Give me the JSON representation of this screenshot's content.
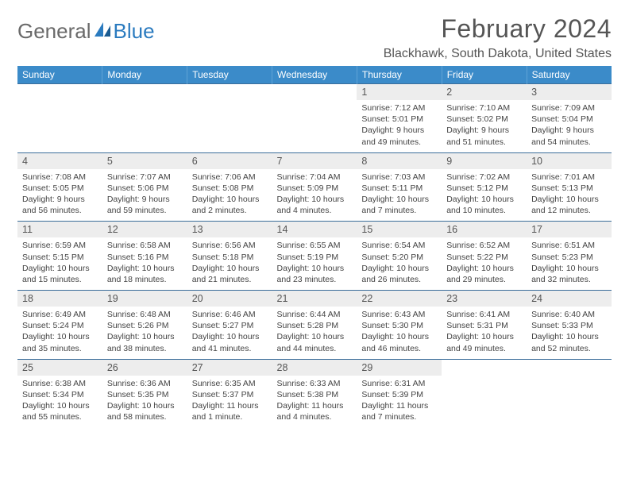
{
  "brand": {
    "part1": "General",
    "part2": "Blue"
  },
  "title": "February 2024",
  "location": "Blackhawk, South Dakota, United States",
  "colors": {
    "header_bg": "#3b8bc9",
    "header_text": "#ffffff",
    "daynum_bg": "#ededed",
    "rule": "#3b6d9a",
    "logo_gray": "#6a6a6a",
    "logo_blue": "#2b7bbf"
  },
  "day_names": [
    "Sunday",
    "Monday",
    "Tuesday",
    "Wednesday",
    "Thursday",
    "Friday",
    "Saturday"
  ],
  "weeks": [
    [
      null,
      null,
      null,
      null,
      {
        "n": "1",
        "sr": "Sunrise: 7:12 AM",
        "ss": "Sunset: 5:01 PM",
        "d1": "Daylight: 9 hours",
        "d2": "and 49 minutes."
      },
      {
        "n": "2",
        "sr": "Sunrise: 7:10 AM",
        "ss": "Sunset: 5:02 PM",
        "d1": "Daylight: 9 hours",
        "d2": "and 51 minutes."
      },
      {
        "n": "3",
        "sr": "Sunrise: 7:09 AM",
        "ss": "Sunset: 5:04 PM",
        "d1": "Daylight: 9 hours",
        "d2": "and 54 minutes."
      }
    ],
    [
      {
        "n": "4",
        "sr": "Sunrise: 7:08 AM",
        "ss": "Sunset: 5:05 PM",
        "d1": "Daylight: 9 hours",
        "d2": "and 56 minutes."
      },
      {
        "n": "5",
        "sr": "Sunrise: 7:07 AM",
        "ss": "Sunset: 5:06 PM",
        "d1": "Daylight: 9 hours",
        "d2": "and 59 minutes."
      },
      {
        "n": "6",
        "sr": "Sunrise: 7:06 AM",
        "ss": "Sunset: 5:08 PM",
        "d1": "Daylight: 10 hours",
        "d2": "and 2 minutes."
      },
      {
        "n": "7",
        "sr": "Sunrise: 7:04 AM",
        "ss": "Sunset: 5:09 PM",
        "d1": "Daylight: 10 hours",
        "d2": "and 4 minutes."
      },
      {
        "n": "8",
        "sr": "Sunrise: 7:03 AM",
        "ss": "Sunset: 5:11 PM",
        "d1": "Daylight: 10 hours",
        "d2": "and 7 minutes."
      },
      {
        "n": "9",
        "sr": "Sunrise: 7:02 AM",
        "ss": "Sunset: 5:12 PM",
        "d1": "Daylight: 10 hours",
        "d2": "and 10 minutes."
      },
      {
        "n": "10",
        "sr": "Sunrise: 7:01 AM",
        "ss": "Sunset: 5:13 PM",
        "d1": "Daylight: 10 hours",
        "d2": "and 12 minutes."
      }
    ],
    [
      {
        "n": "11",
        "sr": "Sunrise: 6:59 AM",
        "ss": "Sunset: 5:15 PM",
        "d1": "Daylight: 10 hours",
        "d2": "and 15 minutes."
      },
      {
        "n": "12",
        "sr": "Sunrise: 6:58 AM",
        "ss": "Sunset: 5:16 PM",
        "d1": "Daylight: 10 hours",
        "d2": "and 18 minutes."
      },
      {
        "n": "13",
        "sr": "Sunrise: 6:56 AM",
        "ss": "Sunset: 5:18 PM",
        "d1": "Daylight: 10 hours",
        "d2": "and 21 minutes."
      },
      {
        "n": "14",
        "sr": "Sunrise: 6:55 AM",
        "ss": "Sunset: 5:19 PM",
        "d1": "Daylight: 10 hours",
        "d2": "and 23 minutes."
      },
      {
        "n": "15",
        "sr": "Sunrise: 6:54 AM",
        "ss": "Sunset: 5:20 PM",
        "d1": "Daylight: 10 hours",
        "d2": "and 26 minutes."
      },
      {
        "n": "16",
        "sr": "Sunrise: 6:52 AM",
        "ss": "Sunset: 5:22 PM",
        "d1": "Daylight: 10 hours",
        "d2": "and 29 minutes."
      },
      {
        "n": "17",
        "sr": "Sunrise: 6:51 AM",
        "ss": "Sunset: 5:23 PM",
        "d1": "Daylight: 10 hours",
        "d2": "and 32 minutes."
      }
    ],
    [
      {
        "n": "18",
        "sr": "Sunrise: 6:49 AM",
        "ss": "Sunset: 5:24 PM",
        "d1": "Daylight: 10 hours",
        "d2": "and 35 minutes."
      },
      {
        "n": "19",
        "sr": "Sunrise: 6:48 AM",
        "ss": "Sunset: 5:26 PM",
        "d1": "Daylight: 10 hours",
        "d2": "and 38 minutes."
      },
      {
        "n": "20",
        "sr": "Sunrise: 6:46 AM",
        "ss": "Sunset: 5:27 PM",
        "d1": "Daylight: 10 hours",
        "d2": "and 41 minutes."
      },
      {
        "n": "21",
        "sr": "Sunrise: 6:44 AM",
        "ss": "Sunset: 5:28 PM",
        "d1": "Daylight: 10 hours",
        "d2": "and 44 minutes."
      },
      {
        "n": "22",
        "sr": "Sunrise: 6:43 AM",
        "ss": "Sunset: 5:30 PM",
        "d1": "Daylight: 10 hours",
        "d2": "and 46 minutes."
      },
      {
        "n": "23",
        "sr": "Sunrise: 6:41 AM",
        "ss": "Sunset: 5:31 PM",
        "d1": "Daylight: 10 hours",
        "d2": "and 49 minutes."
      },
      {
        "n": "24",
        "sr": "Sunrise: 6:40 AM",
        "ss": "Sunset: 5:33 PM",
        "d1": "Daylight: 10 hours",
        "d2": "and 52 minutes."
      }
    ],
    [
      {
        "n": "25",
        "sr": "Sunrise: 6:38 AM",
        "ss": "Sunset: 5:34 PM",
        "d1": "Daylight: 10 hours",
        "d2": "and 55 minutes."
      },
      {
        "n": "26",
        "sr": "Sunrise: 6:36 AM",
        "ss": "Sunset: 5:35 PM",
        "d1": "Daylight: 10 hours",
        "d2": "and 58 minutes."
      },
      {
        "n": "27",
        "sr": "Sunrise: 6:35 AM",
        "ss": "Sunset: 5:37 PM",
        "d1": "Daylight: 11 hours",
        "d2": "and 1 minute."
      },
      {
        "n": "28",
        "sr": "Sunrise: 6:33 AM",
        "ss": "Sunset: 5:38 PM",
        "d1": "Daylight: 11 hours",
        "d2": "and 4 minutes."
      },
      {
        "n": "29",
        "sr": "Sunrise: 6:31 AM",
        "ss": "Sunset: 5:39 PM",
        "d1": "Daylight: 11 hours",
        "d2": "and 7 minutes."
      },
      null,
      null
    ]
  ]
}
